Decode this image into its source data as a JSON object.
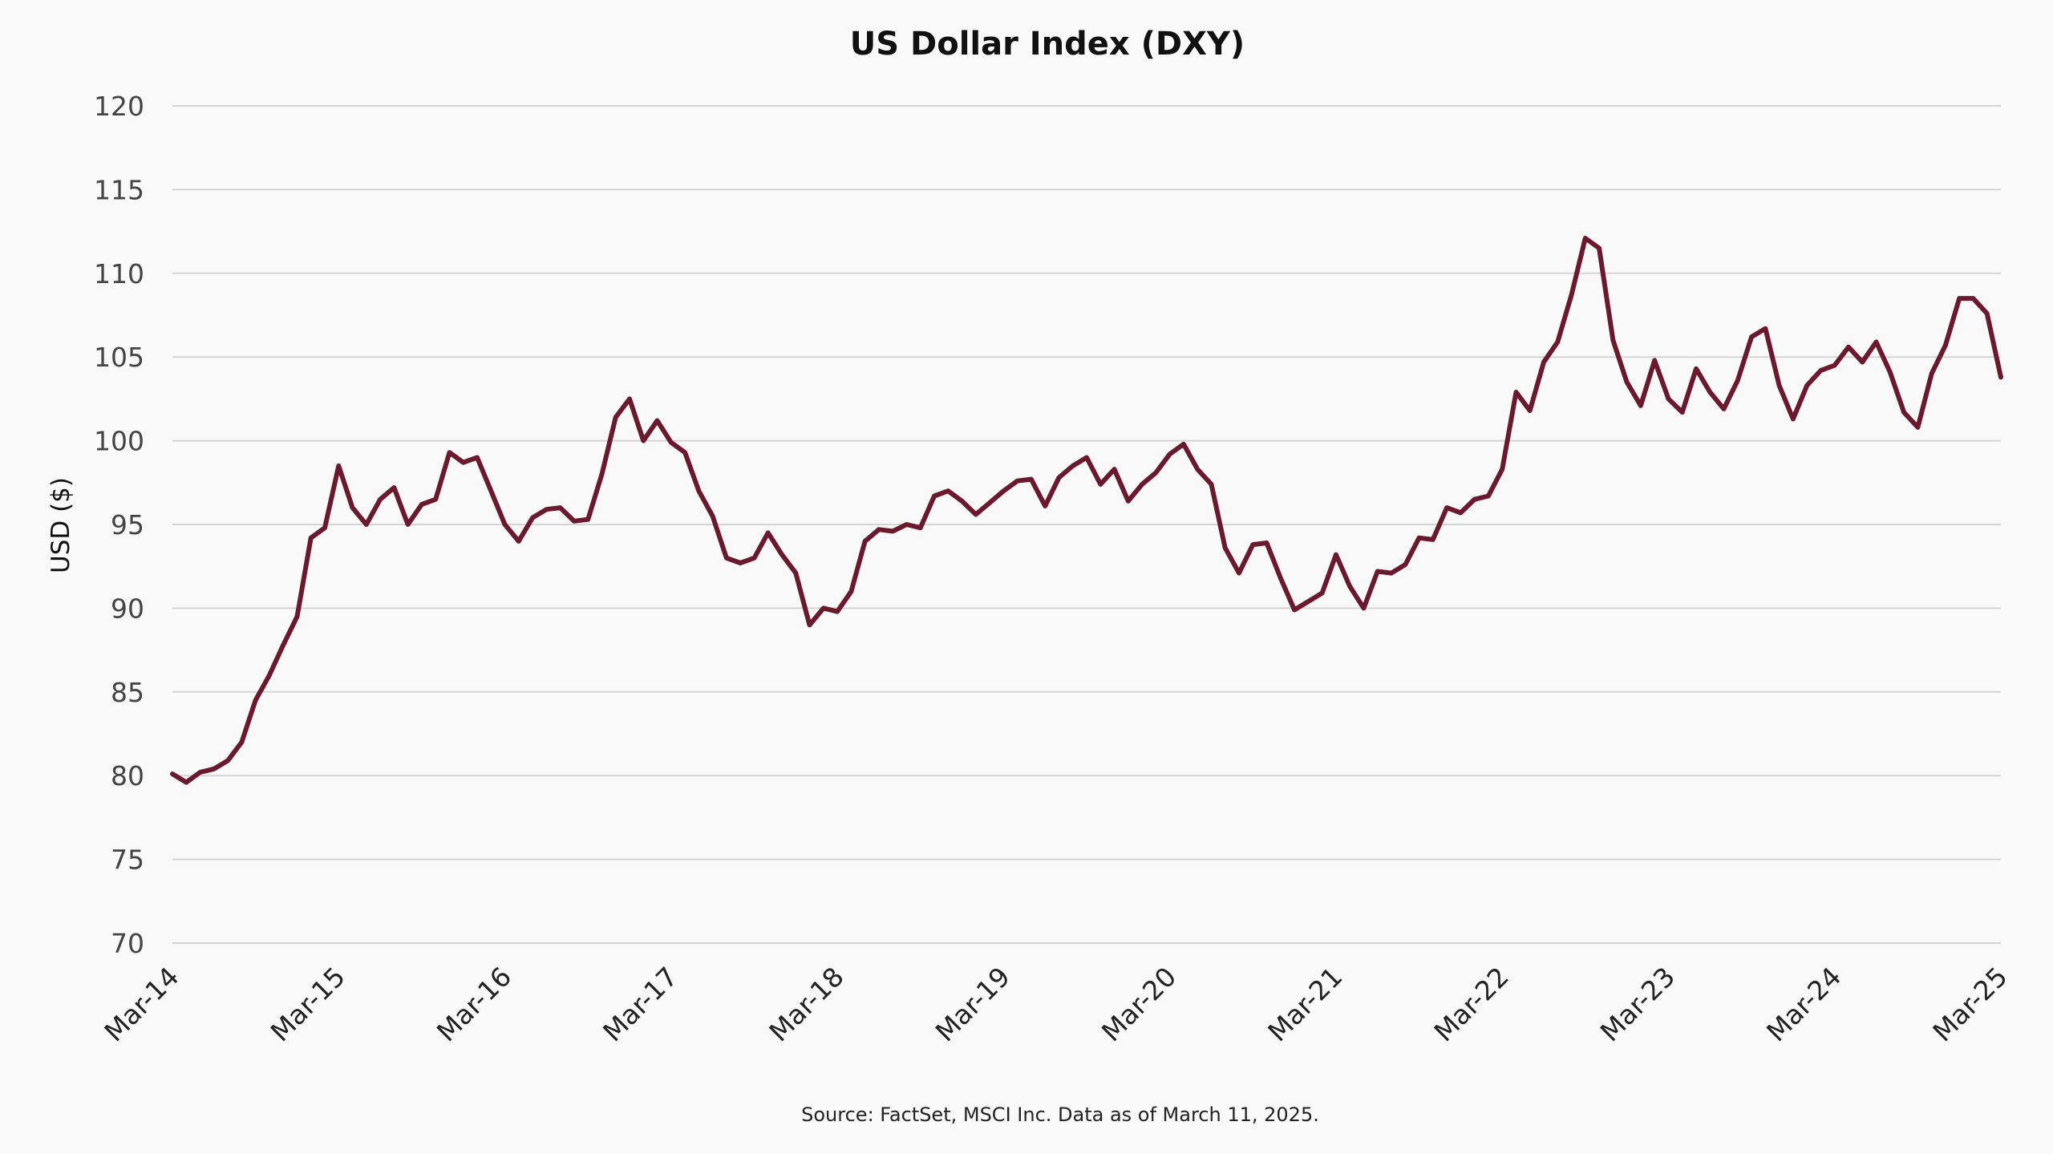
{
  "chart_data": {
    "type": "line",
    "title": "US Dollar Index (DXY)",
    "xlabel": "",
    "ylabel": "USD ($)",
    "ylim": [
      70,
      120
    ],
    "yticks": [
      70,
      75,
      80,
      85,
      90,
      95,
      100,
      105,
      110,
      115,
      120
    ],
    "xlim": [
      "2014-03",
      "2025-03"
    ],
    "xticks": [
      "Mar-14",
      "Mar-15",
      "Mar-16",
      "Mar-17",
      "Mar-18",
      "Mar-19",
      "Mar-20",
      "Mar-21",
      "Mar-22",
      "Mar-23",
      "Mar-24",
      "Mar-25"
    ],
    "grid": true,
    "legend": "none",
    "colors": {
      "line": "#6b1a2e",
      "grid": "#d4d4d4",
      "background": "#f9f9f9"
    },
    "source": "Source: FactSet, MSCI Inc. Data as of March 11, 2025.",
    "series": [
      {
        "x": [
          "2014-03",
          "2014-04",
          "2014-05",
          "2014-06",
          "2014-07",
          "2014-08",
          "2014-09",
          "2014-10",
          "2014-11",
          "2014-12",
          "2015-01",
          "2015-02",
          "2015-03",
          "2015-04",
          "2015-05",
          "2015-06",
          "2015-07",
          "2015-08",
          "2015-09",
          "2015-10",
          "2015-11",
          "2015-12",
          "2016-01",
          "2016-02",
          "2016-03",
          "2016-04",
          "2016-05",
          "2016-06",
          "2016-07",
          "2016-08",
          "2016-09",
          "2016-10",
          "2016-11",
          "2016-12",
          "2017-01",
          "2017-02",
          "2017-03",
          "2017-04",
          "2017-05",
          "2017-06",
          "2017-07",
          "2017-08",
          "2017-09",
          "2017-10",
          "2017-11",
          "2017-12",
          "2018-01",
          "2018-02",
          "2018-03",
          "2018-04",
          "2018-05",
          "2018-06",
          "2018-07",
          "2018-08",
          "2018-09",
          "2018-10",
          "2018-11",
          "2018-12",
          "2019-01",
          "2019-02",
          "2019-03",
          "2019-04",
          "2019-05",
          "2019-06",
          "2019-07",
          "2019-08",
          "2019-09",
          "2019-10",
          "2019-11",
          "2019-12",
          "2020-01",
          "2020-02",
          "2020-03",
          "2020-04",
          "2020-05",
          "2020-06",
          "2020-07",
          "2020-08",
          "2020-09",
          "2020-10",
          "2020-11",
          "2020-12",
          "2021-01",
          "2021-02",
          "2021-03",
          "2021-04",
          "2021-05",
          "2021-06",
          "2021-07",
          "2021-08",
          "2021-09",
          "2021-10",
          "2021-11",
          "2021-12",
          "2022-01",
          "2022-02",
          "2022-03",
          "2022-04",
          "2022-05",
          "2022-06",
          "2022-07",
          "2022-08",
          "2022-09",
          "2022-10",
          "2022-11",
          "2022-12",
          "2023-01",
          "2023-02",
          "2023-03",
          "2023-04",
          "2023-05",
          "2023-06",
          "2023-07",
          "2023-08",
          "2023-09",
          "2023-10",
          "2023-11",
          "2023-12",
          "2024-01",
          "2024-02",
          "2024-03",
          "2024-04",
          "2024-05",
          "2024-06",
          "2024-07",
          "2024-08",
          "2024-09",
          "2024-10",
          "2024-11",
          "2024-12",
          "2025-01",
          "2025-02",
          "2025-03"
        ],
        "values": [
          80.1,
          79.6,
          80.2,
          80.4,
          80.9,
          82.0,
          84.5,
          86.0,
          87.8,
          89.5,
          94.2,
          94.8,
          98.5,
          96.0,
          95.0,
          96.5,
          97.2,
          95.0,
          96.2,
          96.5,
          99.3,
          98.7,
          99.0,
          97.0,
          95.0,
          94.0,
          95.4,
          95.9,
          96.0,
          95.2,
          95.3,
          98.0,
          101.4,
          102.5,
          100.0,
          101.2,
          99.9,
          99.3,
          97.0,
          95.5,
          93.0,
          92.7,
          93.0,
          94.5,
          93.2,
          92.1,
          89.0,
          90.0,
          89.8,
          91.0,
          94.0,
          94.7,
          94.6,
          95.0,
          94.8,
          96.7,
          97.0,
          96.4,
          95.6,
          96.3,
          97.0,
          97.6,
          97.7,
          96.1,
          97.8,
          98.5,
          99.0,
          97.4,
          98.3,
          96.4,
          97.4,
          98.1,
          99.2,
          99.8,
          98.3,
          97.4,
          93.6,
          92.1,
          93.8,
          93.9,
          91.8,
          89.9,
          90.4,
          90.9,
          93.2,
          91.3,
          90.0,
          92.2,
          92.1,
          92.6,
          94.2,
          94.1,
          96.0,
          95.7,
          96.5,
          96.7,
          98.3,
          102.9,
          101.8,
          104.7,
          105.9,
          108.7,
          112.1,
          111.5,
          106.0,
          103.5,
          102.1,
          104.8,
          102.5,
          101.7,
          104.3,
          102.9,
          101.9,
          103.6,
          106.2,
          106.7,
          103.3,
          101.3,
          103.3,
          104.2,
          104.5,
          105.6,
          104.7,
          105.9,
          104.1,
          101.7,
          100.8,
          104.0,
          105.7,
          108.5,
          108.5,
          107.6,
          103.8
        ]
      }
    ]
  }
}
